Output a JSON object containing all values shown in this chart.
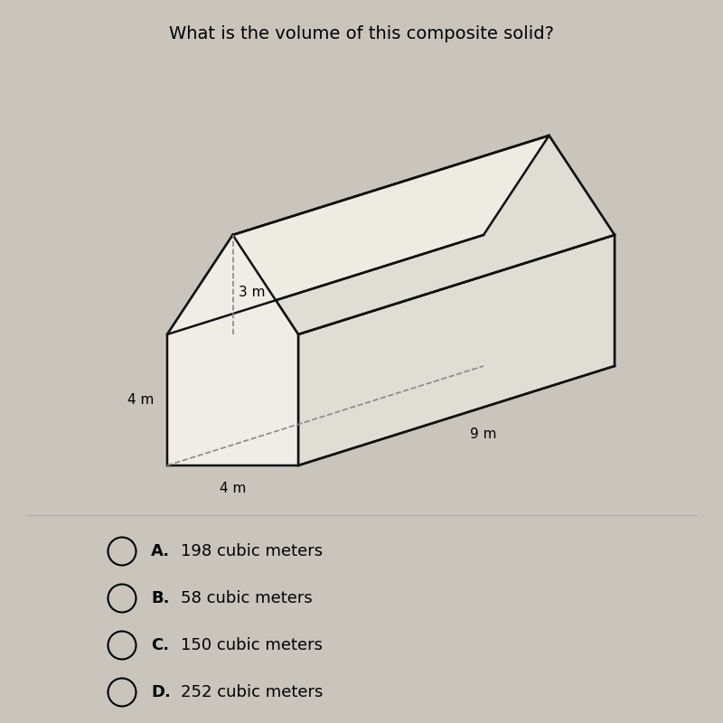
{
  "title": "What is the volume of this composite solid?",
  "title_fontsize": 14,
  "background_color": "#c9c5bd",
  "label_3m": "3 m",
  "label_4m_left": "4 m",
  "label_4m_bottom": "4 m",
  "label_9m": "9 m",
  "choices": [
    {
      "letter": "A.",
      "text": "198 cubic meters"
    },
    {
      "letter": "B.",
      "text": "58 cubic meters"
    },
    {
      "letter": "C.",
      "text": "150 cubic meters"
    },
    {
      "letter": "D.",
      "text": "252 cubic meters"
    }
  ],
  "line_color": "#111111",
  "face_color_front": "#f0ede6",
  "face_color_side": "#e0ddd5",
  "face_color_top": "#eeebe3",
  "dashed_color": "#888888",
  "divider_color": "#aaaaaa"
}
